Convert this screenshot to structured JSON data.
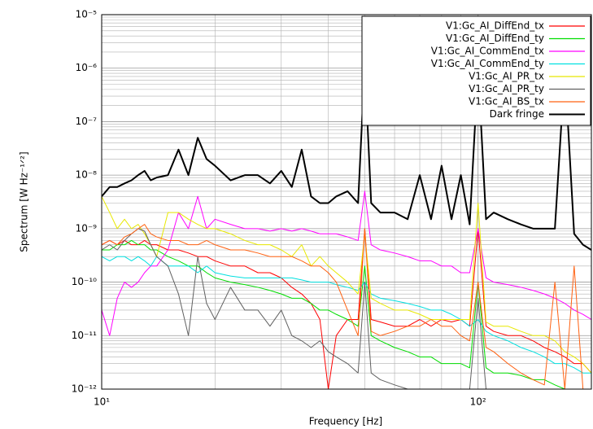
{
  "chart_data": {
    "type": "line",
    "x_label": "Frequency [Hz]",
    "y_label": "Spectrum [W Hz⁻¹ᐟ²]",
    "log_x": true,
    "log_y": true,
    "grid": true,
    "minor_grid": true,
    "legend": "upper right",
    "xlim": [
      10,
      200
    ],
    "xticks": [
      {
        "value": 10,
        "label": "10¹"
      },
      {
        "value": 100,
        "label": "10²"
      }
    ],
    "ylim": [
      1e-12,
      1e-05
    ],
    "yticks": [
      {
        "value": 1e-12,
        "label": "10⁻¹²"
      },
      {
        "value": 1e-11,
        "label": "10⁻¹¹"
      },
      {
        "value": 1e-10,
        "label": "10⁻¹⁰"
      },
      {
        "value": 1e-09,
        "label": "10⁻⁹"
      },
      {
        "value": 1e-08,
        "label": "10⁻⁸"
      },
      {
        "value": 1e-07,
        "label": "10⁻⁷"
      },
      {
        "value": 1e-06,
        "label": "10⁻⁶"
      },
      {
        "value": 1e-05,
        "label": "10⁻⁵"
      }
    ],
    "x": [
      10,
      10.5,
      11,
      11.5,
      12,
      12.5,
      13,
      13.5,
      14,
      15,
      16,
      17,
      18,
      19,
      20,
      22,
      24,
      26,
      28,
      30,
      32,
      34,
      36,
      38,
      40,
      42,
      45,
      48,
      50,
      52,
      55,
      60,
      65,
      70,
      75,
      80,
      85,
      90,
      95,
      100,
      105,
      110,
      120,
      130,
      140,
      150,
      160,
      170,
      180,
      190,
      200
    ],
    "series": [
      {
        "name": "V1:Gc_AI_DiffEnd_tx",
        "color": "#ff0000",
        "values": [
          5e-10,
          6e-10,
          5e-10,
          6e-10,
          5e-10,
          5e-10,
          6e-10,
          5e-10,
          5e-10,
          4e-10,
          4e-10,
          3.5e-10,
          3e-10,
          3e-10,
          2.5e-10,
          2e-10,
          2e-10,
          1.5e-10,
          1.5e-10,
          1.2e-10,
          8e-11,
          6e-11,
          4e-11,
          2e-11,
          1e-12,
          1e-11,
          2e-11,
          2e-11,
          1e-09,
          2e-11,
          1.8e-11,
          1.5e-11,
          1.5e-11,
          2e-11,
          1.5e-11,
          2e-11,
          1.8e-11,
          2e-11,
          1.5e-11,
          1e-09,
          1.5e-11,
          1.2e-11,
          1e-11,
          1e-11,
          8e-12,
          6e-12,
          5e-12,
          4e-12,
          3e-12,
          3e-12,
          2e-12
        ]
      },
      {
        "name": "V1:Gc_AI_DiffEnd_ty",
        "color": "#00dd00",
        "values": [
          4e-10,
          4e-10,
          5e-10,
          5e-10,
          6e-10,
          5e-10,
          5e-10,
          4e-10,
          4e-10,
          3e-10,
          2.5e-10,
          2e-10,
          2e-10,
          1.5e-10,
          1.2e-10,
          1e-10,
          9e-11,
          8e-11,
          7e-11,
          6e-11,
          5e-11,
          5e-11,
          4e-11,
          3e-11,
          3e-11,
          2.5e-11,
          2e-11,
          1.5e-11,
          2e-10,
          1e-11,
          8e-12,
          6e-12,
          5e-12,
          4e-12,
          4e-12,
          3e-12,
          3e-12,
          3e-12,
          2.5e-12,
          1e-10,
          2.5e-12,
          2e-12,
          2e-12,
          1.8e-12,
          1.5e-12,
          1.5e-12,
          1.2e-12,
          1e-12,
          1e-12,
          1e-12,
          1e-12
        ]
      },
      {
        "name": "V1:Gc_AI_CommEnd_tx",
        "color": "#ff00ff",
        "values": [
          3e-11,
          1e-11,
          5e-11,
          1e-10,
          8e-11,
          1e-10,
          1.5e-10,
          2e-10,
          2e-10,
          4e-10,
          2e-09,
          1e-09,
          4e-09,
          1e-09,
          1.5e-09,
          1.2e-09,
          1e-09,
          1e-09,
          9e-10,
          1e-09,
          9e-10,
          1e-09,
          9e-10,
          8e-10,
          8e-10,
          8e-10,
          7e-10,
          6e-10,
          5e-09,
          5e-10,
          4e-10,
          3.5e-10,
          3e-10,
          2.5e-10,
          2.5e-10,
          2e-10,
          2e-10,
          1.5e-10,
          1.5e-10,
          1e-09,
          1.2e-10,
          1e-10,
          9e-11,
          8e-11,
          7e-11,
          6e-11,
          5e-11,
          4e-11,
          3e-11,
          2.5e-11,
          2e-11
        ]
      },
      {
        "name": "V1:Gc_AI_CommEnd_ty",
        "color": "#00e0e0",
        "values": [
          3e-10,
          2.5e-10,
          3e-10,
          3e-10,
          2.5e-10,
          3e-10,
          2.5e-10,
          2e-10,
          3e-10,
          2e-10,
          2e-10,
          2e-10,
          1.5e-10,
          2e-10,
          1.5e-10,
          1.3e-10,
          1.2e-10,
          1.2e-10,
          1.2e-10,
          1.2e-10,
          1.2e-10,
          1.1e-10,
          1e-10,
          1e-10,
          1e-10,
          9e-11,
          8e-11,
          7e-11,
          1e-10,
          6e-11,
          5e-11,
          4.5e-11,
          4e-11,
          3.5e-11,
          3e-11,
          3e-11,
          2.5e-11,
          2e-11,
          1.5e-11,
          2e-11,
          1.2e-11,
          1e-11,
          8e-12,
          6e-12,
          5e-12,
          4e-12,
          3e-12,
          3e-12,
          2.5e-12,
          2e-12,
          2e-12
        ]
      },
      {
        "name": "V1:Gc_AI_PR_tx",
        "color": "#e8e800",
        "values": [
          4e-09,
          2e-09,
          1e-09,
          1.5e-09,
          1e-09,
          1.2e-09,
          8e-10,
          5e-10,
          3e-10,
          2e-09,
          2e-09,
          1.5e-09,
          1.2e-09,
          1e-09,
          1e-09,
          8e-10,
          6e-10,
          5e-10,
          5e-10,
          4e-10,
          3e-10,
          5e-10,
          2e-10,
          3e-10,
          2e-10,
          1.5e-10,
          1e-10,
          6e-11,
          8e-10,
          5e-11,
          4e-11,
          3e-11,
          3e-11,
          2.5e-11,
          2e-11,
          2e-11,
          2e-11,
          2e-11,
          2e-11,
          3e-09,
          1.8e-11,
          1.5e-11,
          1.5e-11,
          1.2e-11,
          1e-11,
          1e-11,
          8e-12,
          5e-12,
          4e-12,
          3e-12,
          2e-12
        ]
      },
      {
        "name": "V1:Gc_AI_PR_ty",
        "color": "#606060",
        "values": [
          4e-10,
          5e-10,
          4e-10,
          6e-10,
          8e-10,
          1e-09,
          9e-10,
          5e-10,
          3e-10,
          2e-10,
          6e-11,
          1e-11,
          3e-10,
          4e-11,
          2e-11,
          8e-11,
          3e-11,
          3e-11,
          1.5e-11,
          3e-11,
          1e-11,
          8e-12,
          6e-12,
          8e-12,
          5e-12,
          4e-12,
          3e-12,
          2e-12,
          1e-10,
          2e-12,
          1.5e-12,
          1.2e-12,
          1e-12,
          1e-12,
          1e-12,
          1e-12,
          1e-12,
          1e-12,
          1e-12,
          5e-11,
          1e-12,
          1e-12,
          1e-12,
          1e-12,
          1e-12,
          1e-12,
          1e-12,
          1e-12,
          1e-12,
          1e-12,
          1e-12
        ]
      },
      {
        "name": "V1:Gc_AI_BS_tx",
        "color": "#ff6010",
        "values": [
          5e-10,
          6e-10,
          5e-10,
          7e-10,
          8e-10,
          1e-09,
          1.2e-09,
          8e-10,
          7e-10,
          6e-10,
          6e-10,
          5e-10,
          5e-10,
          6e-10,
          5e-10,
          4e-10,
          4e-10,
          3.5e-10,
          3e-10,
          3e-10,
          3e-10,
          2.5e-10,
          2e-10,
          2e-10,
          1.5e-10,
          1e-10,
          3e-11,
          1e-11,
          1e-09,
          1.2e-11,
          1e-11,
          1.2e-11,
          1.5e-11,
          1.5e-11,
          2e-11,
          1.5e-11,
          1.5e-11,
          1e-11,
          8e-12,
          1e-10,
          6e-12,
          5e-12,
          3e-12,
          2e-12,
          1.5e-12,
          1.2e-12,
          1e-10,
          1e-12,
          2e-10,
          1e-12,
          1e-12
        ]
      },
      {
        "name": "Dark fringe",
        "color": "#000000",
        "values": [
          4e-09,
          6e-09,
          6e-09,
          7e-09,
          8e-09,
          1e-08,
          1.2e-08,
          8e-09,
          9e-09,
          1e-08,
          3e-08,
          1e-08,
          5e-08,
          2e-08,
          1.5e-08,
          8e-09,
          1e-08,
          1e-08,
          7e-09,
          1.2e-08,
          6e-09,
          3e-08,
          4e-09,
          3e-09,
          3e-09,
          4e-09,
          5e-09,
          3e-09,
          1.2e-06,
          3e-09,
          2e-09,
          2e-09,
          1.5e-09,
          1e-08,
          1.5e-09,
          1.5e-08,
          1.5e-09,
          1e-08,
          1.2e-09,
          1e-06,
          1.5e-09,
          2e-09,
          1.5e-09,
          1.2e-09,
          1e-09,
          1e-09,
          1e-09,
          1e-06,
          8e-10,
          5e-10,
          4e-10
        ]
      }
    ]
  }
}
